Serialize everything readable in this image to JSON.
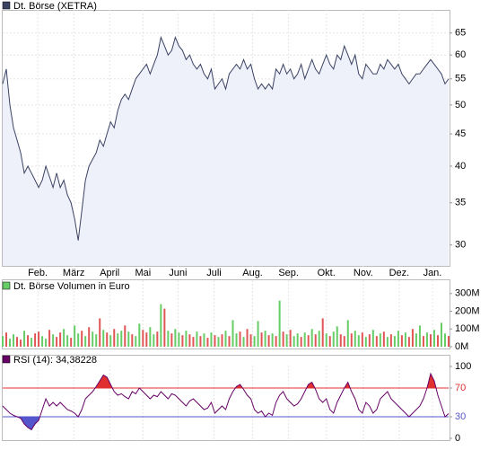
{
  "chart_data": [
    {
      "type": "area",
      "log_scale": true,
      "grid": true,
      "series": [
        {
          "name": "Dt. Börse (XETRA)",
          "color": "#3b4262",
          "fill": "#eef0fa",
          "values": [
            54,
            57,
            50,
            46,
            44,
            42,
            39,
            40,
            39,
            38,
            37,
            38,
            40,
            38.5,
            37,
            39,
            37,
            38,
            36,
            35,
            33,
            30.5,
            34,
            38,
            40,
            41,
            42,
            44,
            43,
            45,
            47,
            46,
            49,
            51,
            52,
            51,
            53,
            55,
            56,
            57,
            58,
            56,
            58,
            60,
            64,
            62,
            60,
            61,
            64,
            62,
            61,
            59,
            60,
            58,
            57,
            58,
            56,
            55,
            57,
            53,
            54,
            55,
            53,
            56,
            57,
            58,
            57,
            59,
            57,
            58,
            55,
            53,
            54,
            53,
            54,
            53,
            57,
            56,
            58,
            56,
            57,
            55,
            56,
            58,
            55,
            57,
            59,
            57,
            56,
            58,
            60,
            58,
            57,
            60,
            59,
            62,
            60,
            58,
            60,
            56,
            55,
            58,
            57,
            56,
            56,
            58,
            57,
            59,
            58,
            57,
            58,
            56,
            55,
            54,
            55,
            56,
            56,
            57,
            58,
            59,
            58,
            57,
            56,
            54,
            55
          ]
        }
      ],
      "xlim": [
        0,
        124
      ],
      "xticks": [
        {
          "value": 9.75,
          "label": "Feb."
        },
        {
          "value": 19.75,
          "label": "März"
        },
        {
          "value": 29.75,
          "label": "April"
        },
        {
          "value": 39,
          "label": "Mai"
        },
        {
          "value": 48.75,
          "label": "Juni"
        },
        {
          "value": 58.75,
          "label": "Juli"
        },
        {
          "value": 69.5,
          "label": "Aug."
        },
        {
          "value": 79.5,
          "label": "Sep."
        },
        {
          "value": 90,
          "label": "Okt."
        },
        {
          "value": 100.25,
          "label": "Nov."
        },
        {
          "value": 110.25,
          "label": "Dez."
        },
        {
          "value": 119.5,
          "label": "Jan."
        }
      ],
      "ylim": [
        27.8,
        70.5
      ],
      "yticks": [
        30,
        35,
        40,
        45,
        50,
        55,
        60,
        65
      ]
    },
    {
      "type": "bar",
      "series": [
        {
          "name": "Dt. Börse Volumen in Euro",
          "color": "#66cc66",
          "down_color": "#e05555",
          "values": [
            60,
            80,
            45,
            70,
            55,
            40,
            90,
            65,
            50,
            75,
            85,
            60,
            45,
            95,
            70,
            55,
            80,
            100,
            65,
            50,
            120,
            75,
            90,
            60,
            110,
            85,
            70,
            160,
            95,
            80,
            65,
            100,
            75,
            90,
            120,
            85,
            70,
            60,
            130,
            95,
            80,
            110,
            70,
            85,
            240,
            215,
            90,
            75,
            100,
            80,
            65,
            90,
            70,
            55,
            85,
            60,
            75,
            50,
            80,
            65,
            55,
            70,
            90,
            60,
            150,
            75,
            85,
            55,
            100,
            70,
            60,
            145,
            80,
            90,
            65,
            75,
            60,
            260,
            85,
            70,
            95,
            60,
            75,
            55,
            80,
            65,
            100,
            70,
            90,
            160,
            75,
            60,
            85,
            115,
            70,
            60,
            150,
            75,
            90,
            65,
            80,
            55,
            70,
            95,
            60,
            75,
            85,
            55,
            70,
            60,
            90,
            65,
            80,
            55,
            100,
            75,
            120,
            60,
            80,
            70,
            95,
            65,
            135,
            75,
            60
          ],
          "up": [
            true,
            false,
            true,
            true,
            false,
            false,
            true,
            false,
            true,
            false,
            false,
            true,
            true,
            false,
            true,
            false,
            false,
            true,
            true,
            false,
            true,
            true,
            false,
            true,
            false,
            true,
            true,
            false,
            true,
            false,
            true,
            false,
            true,
            true,
            false,
            true,
            false,
            true,
            true,
            false,
            false,
            true,
            true,
            false,
            true,
            false,
            true,
            false,
            true,
            true,
            false,
            true,
            false,
            false,
            true,
            false,
            true,
            false,
            true,
            false,
            true,
            false,
            true,
            false,
            true,
            true,
            false,
            true,
            false,
            false,
            true,
            true,
            false,
            true,
            false,
            true,
            false,
            true,
            false,
            true,
            false,
            true,
            true,
            false,
            true,
            false,
            true,
            false,
            true,
            false,
            true,
            false,
            true,
            true,
            false,
            false,
            true,
            false,
            true,
            true,
            false,
            true,
            false,
            true,
            false,
            true,
            false,
            true,
            false,
            true,
            true,
            false,
            true,
            false,
            false,
            true,
            true,
            false,
            true,
            false,
            true,
            false,
            true,
            true,
            false
          ]
        }
      ],
      "xlim": [
        0,
        124
      ],
      "ylim": [
        0,
        370
      ],
      "yticks": [
        {
          "value": 0,
          "label": "0M"
        },
        {
          "value": 100,
          "label": "100M"
        },
        {
          "value": 200,
          "label": "200M"
        },
        {
          "value": 300,
          "label": "300M"
        }
      ]
    },
    {
      "type": "line",
      "series": [
        {
          "name": "RSI (14): 34,38228",
          "color": "#660066",
          "values": [
            45,
            40,
            35,
            32,
            30,
            28,
            20,
            15,
            12,
            20,
            25,
            40,
            55,
            45,
            50,
            45,
            50,
            45,
            40,
            38,
            35,
            30,
            40,
            55,
            60,
            65,
            72,
            80,
            88,
            85,
            75,
            65,
            60,
            62,
            58,
            55,
            65,
            62,
            70,
            65,
            60,
            55,
            60,
            58,
            65,
            60,
            55,
            62,
            60,
            55,
            50,
            45,
            52,
            55,
            50,
            45,
            40,
            42,
            50,
            35,
            40,
            45,
            40,
            55,
            65,
            72,
            75,
            68,
            60,
            55,
            40,
            35,
            38,
            30,
            35,
            32,
            50,
            60,
            65,
            55,
            50,
            45,
            48,
            55,
            65,
            75,
            78,
            68,
            55,
            50,
            55,
            40,
            35,
            50,
            60,
            70,
            78,
            65,
            55,
            40,
            35,
            50,
            45,
            35,
            40,
            55,
            60,
            65,
            55,
            50,
            45,
            40,
            35,
            30,
            35,
            40,
            45,
            55,
            70,
            90,
            80,
            60,
            45,
            30,
            34.38228
          ]
        }
      ],
      "bands": {
        "upper": 70,
        "upper_color": "#e03030",
        "lower": 30,
        "lower_color": "#5555cc"
      },
      "xlim": [
        0,
        124
      ],
      "ylim": [
        0,
        100
      ],
      "yticks": [
        0,
        30,
        70,
        100
      ]
    }
  ]
}
